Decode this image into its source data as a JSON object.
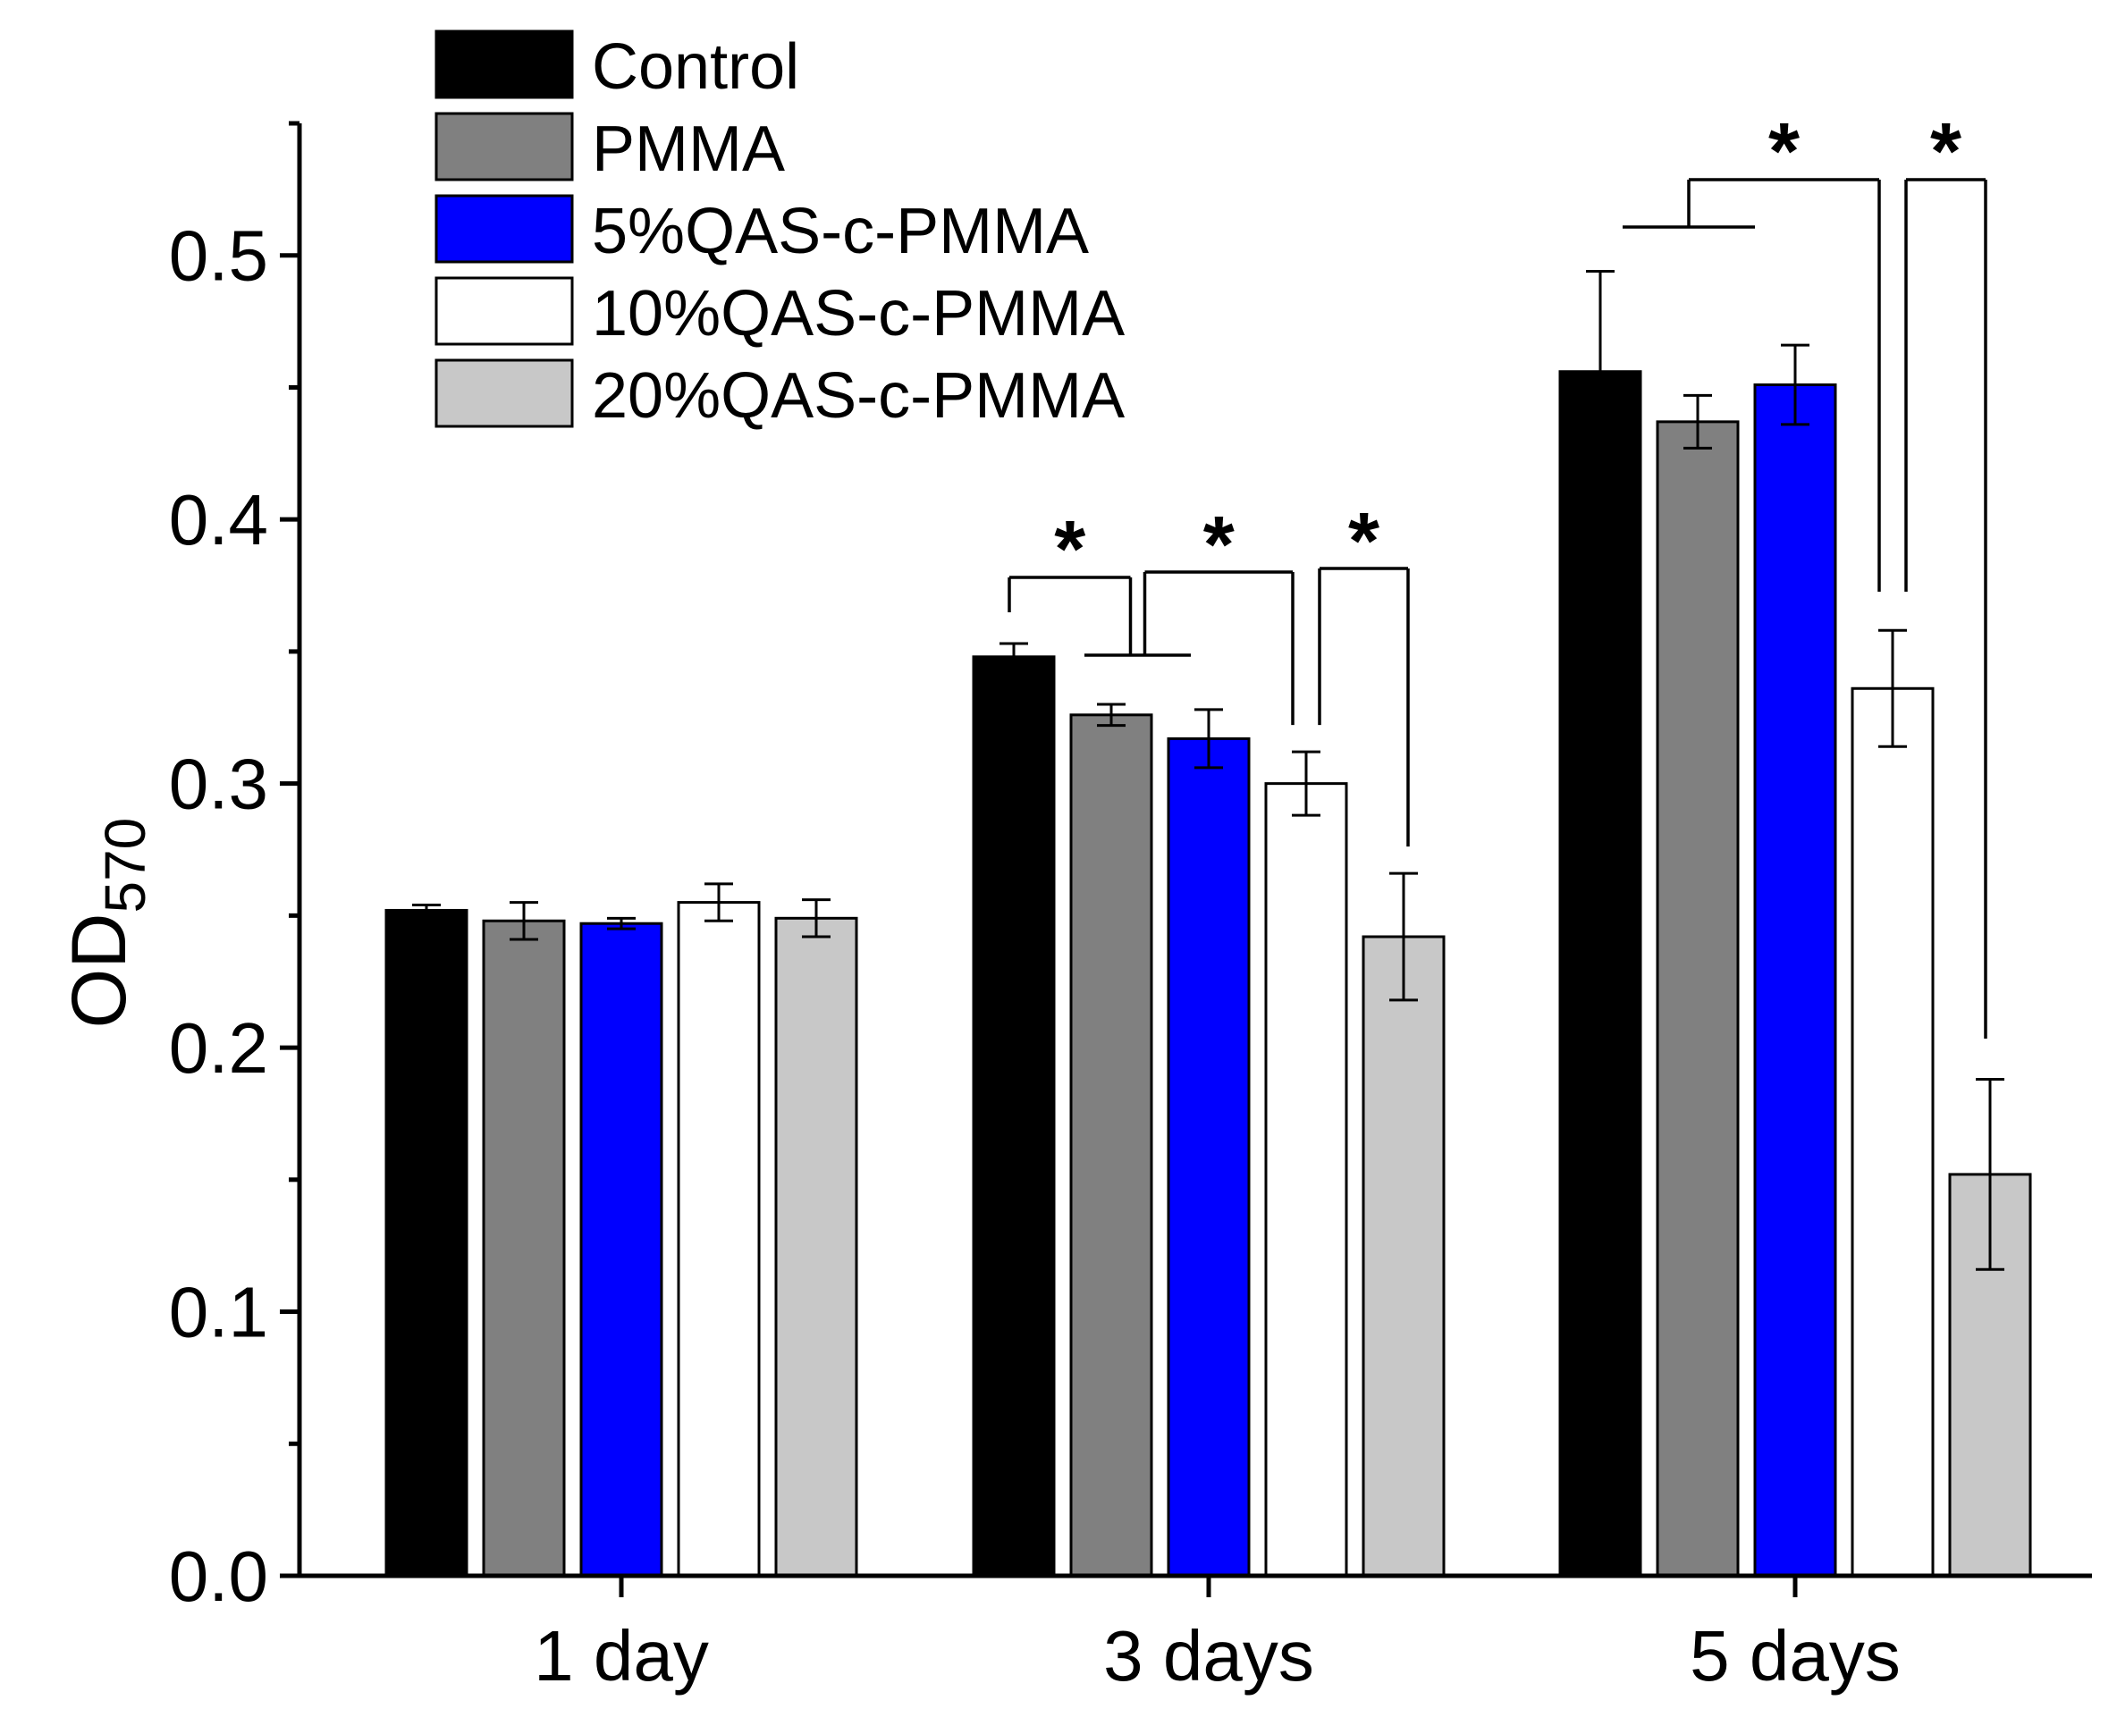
{
  "chart_data": {
    "type": "bar",
    "categories": [
      "1 day",
      "3 days",
      "5 days"
    ],
    "series": [
      {
        "name": "Control",
        "color": "#000000",
        "values": [
          0.252,
          0.348,
          0.456
        ],
        "errors": [
          0.002,
          0.005,
          0.038
        ]
      },
      {
        "name": "PMMA",
        "color": "#808080",
        "values": [
          0.248,
          0.326,
          0.437
        ],
        "errors": [
          0.007,
          0.004,
          0.01
        ]
      },
      {
        "name": "5%QAS-c-PMMA",
        "color": "#0000ff",
        "values": [
          0.247,
          0.317,
          0.451
        ],
        "errors": [
          0.002,
          0.011,
          0.015
        ]
      },
      {
        "name": "10%QAS-c-PMMA",
        "color": "#ffffff",
        "values": [
          0.255,
          0.3,
          0.336
        ],
        "errors": [
          0.007,
          0.012,
          0.022
        ]
      },
      {
        "name": "20%QAS-c-PMMA",
        "color": "#c8c8c8",
        "values": [
          0.249,
          0.242,
          0.152
        ],
        "errors": [
          0.007,
          0.024,
          0.036
        ]
      }
    ],
    "ylabel": "OD",
    "ylabel_subscript": "570",
    "xlabel": "",
    "title": "",
    "ylim": [
      0,
      0.55
    ],
    "yticks": [
      0.0,
      0.1,
      0.2,
      0.3,
      0.4,
      0.5
    ],
    "ytick_labels": [
      "0.0",
      "0.1",
      "0.2",
      "0.3",
      "0.4",
      "0.5"
    ],
    "grid": false,
    "legend_position": "top-left",
    "significance_marker": "*",
    "significance": [
      {
        "category": 1,
        "group_a": [
          0
        ],
        "group_b": [
          1,
          2
        ],
        "label": "*"
      },
      {
        "category": 1,
        "group_a": [
          1,
          2
        ],
        "group_b": [
          3
        ],
        "label": "*"
      },
      {
        "category": 1,
        "group_a": [
          3
        ],
        "group_b": [
          4
        ],
        "label": "*"
      },
      {
        "category": 2,
        "group_a": [
          0,
          1,
          2
        ],
        "group_b": [
          3
        ],
        "label": "*"
      },
      {
        "category": 2,
        "group_a": [
          3
        ],
        "group_b": [
          4
        ],
        "label": "*"
      }
    ]
  }
}
